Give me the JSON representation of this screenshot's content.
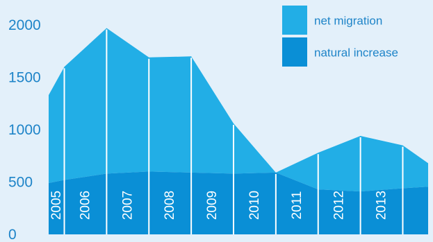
{
  "chart_data": {
    "type": "area",
    "stacked": true,
    "categories": [
      "2005",
      "2006",
      "2007",
      "2008",
      "2009",
      "2010",
      "2011",
      "2012",
      "2013"
    ],
    "series": [
      {
        "name": "natural increase",
        "color": "#0a8fd6",
        "x": [
          2004.63,
          2005.0,
          2006.0,
          2007.0,
          2008.0,
          2009.0,
          2010.0,
          2011.0,
          2012.0,
          2013.0,
          2013.6
        ],
        "values": [
          490,
          520,
          580,
          600,
          590,
          580,
          590,
          430,
          410,
          440,
          455
        ]
      },
      {
        "name": "net migration",
        "color": "#22aee6",
        "x": [
          2004.63,
          2005.0,
          2006.0,
          2007.0,
          2008.0,
          2009.0,
          2010.0,
          2011.0,
          2012.0,
          2013.0,
          2013.6
        ],
        "values": [
          840,
          1080,
          1390,
          1090,
          1110,
          480,
          0,
          350,
          530,
          410,
          225
        ]
      }
    ],
    "ylim": [
      0,
      2100
    ],
    "yticks": [
      0,
      500,
      1000,
      1500,
      2000
    ],
    "grid": false,
    "legend_position": "top-right",
    "label_color": "#1e84c8"
  }
}
